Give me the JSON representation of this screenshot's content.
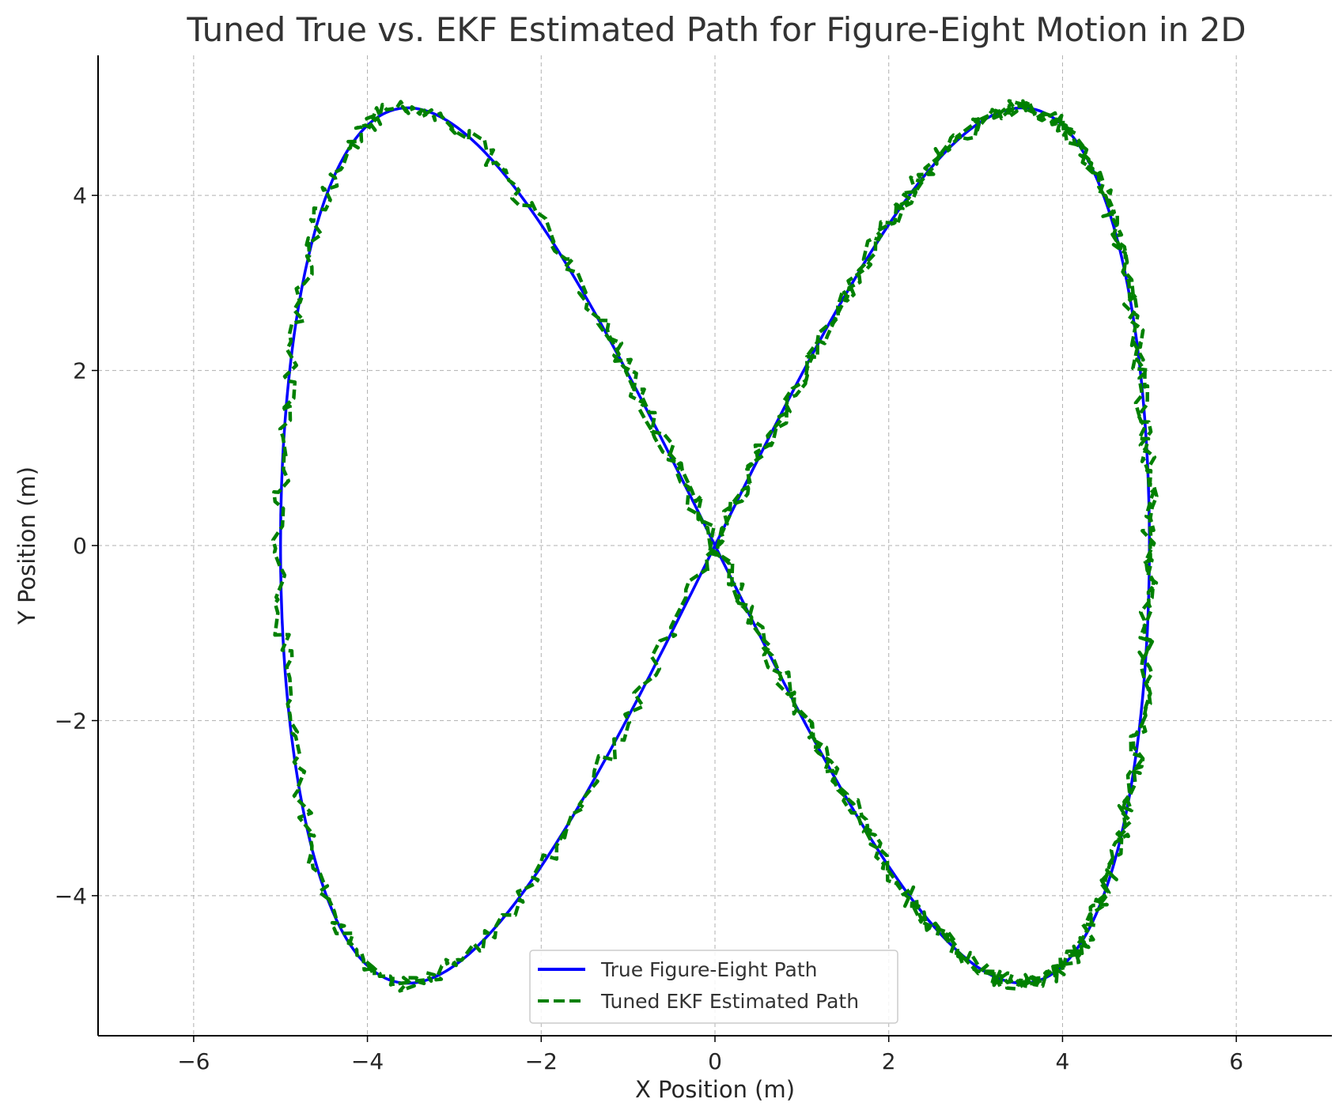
{
  "chart_data": {
    "type": "line",
    "title": "Tuned True vs. EKF Estimated Path for Figure-Eight Motion in 2D",
    "xlabel": "X Position (m)",
    "ylabel": "Y Position (m)",
    "xlim": [
      -7.1,
      7.1
    ],
    "ylim": [
      -5.6,
      5.6
    ],
    "xticks": [
      -6,
      -4,
      -2,
      0,
      2,
      4,
      6
    ],
    "yticks": [
      -4,
      -2,
      0,
      2,
      4
    ],
    "xtick_labels": [
      "−6",
      "−4",
      "−2",
      "0",
      "2",
      "4",
      "6"
    ],
    "ytick_labels": [
      "−4",
      "−2",
      "0",
      "2",
      "4"
    ],
    "grid": true,
    "legend_position": "lower center",
    "parametric": {
      "x": "5*sin(t)",
      "y": "5*sin(2t)",
      "t_range": [
        0,
        9.7
      ]
    },
    "series": [
      {
        "name": "True Figure-Eight Path",
        "color": "#0000ff",
        "style": "solid"
      },
      {
        "name": "Tuned EKF Estimated Path",
        "color": "#008000",
        "style": "dashed"
      }
    ]
  },
  "legend": {
    "items": [
      {
        "label": "True Figure-Eight Path"
      },
      {
        "label": "Tuned EKF Estimated Path"
      }
    ]
  }
}
